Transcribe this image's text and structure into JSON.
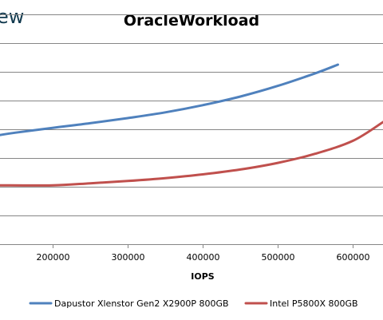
{
  "logo": {
    "text": "ew"
  },
  "chart_data": {
    "type": "line",
    "title": "OracleWorkload",
    "xlabel": "IOPS",
    "ylabel": "",
    "xlim": [
      130000,
      640000
    ],
    "ylim": [
      0,
      8
    ],
    "x_ticks": [
      200000,
      300000,
      400000,
      500000,
      600000
    ],
    "x_tick_labels": [
      "200000",
      "300000",
      "400000",
      "500000",
      "600000"
    ],
    "y_gridlines": [
      1,
      2,
      3,
      4,
      5,
      6,
      7,
      8
    ],
    "grid": true,
    "legend_position": "bottom",
    "colors": {
      "series_1": "#4f81bd",
      "series_2": "#c0504d",
      "grid": "#868686"
    },
    "series": [
      {
        "name": "Dapustor Xlenstor Gen2 X2900P 800GB",
        "color": "#4f81bd",
        "x": [
          130000,
          150000,
          200000,
          250000,
          300000,
          350000,
          400000,
          450000,
          500000,
          550000,
          580000
        ],
        "y": [
          3.8,
          3.88,
          4.05,
          4.21,
          4.39,
          4.59,
          4.84,
          5.14,
          5.51,
          5.95,
          6.25
        ]
      },
      {
        "name": "Intel P5800X 800GB",
        "color": "#c0504d",
        "x": [
          130000,
          200000,
          250000,
          300000,
          350000,
          400000,
          450000,
          500000,
          550000,
          600000,
          640000
        ],
        "y": [
          2.05,
          2.05,
          2.12,
          2.2,
          2.3,
          2.43,
          2.6,
          2.83,
          3.15,
          3.6,
          4.25
        ]
      }
    ]
  }
}
